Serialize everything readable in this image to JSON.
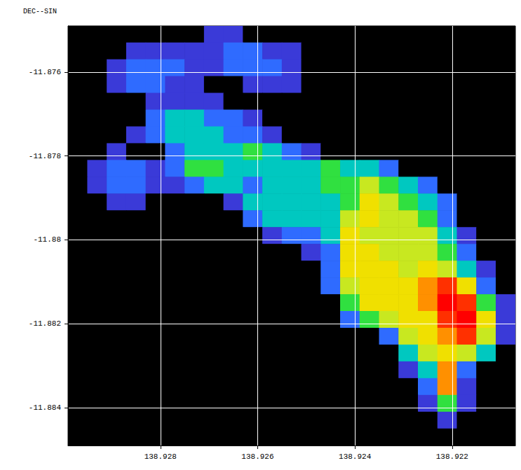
{
  "chart_data": {
    "type": "heatmap",
    "y_label": "DEC--SIN",
    "xlim": [
      138.9299,
      138.9207
    ],
    "xticks": [
      138.928,
      138.926,
      138.924,
      138.922
    ],
    "ylim": [
      -11.8849,
      -11.8749
    ],
    "yticks": [
      -11.884,
      -11.882,
      -11.88,
      -11.878,
      -11.876
    ],
    "grid": true,
    "color_range": [
      0,
      9
    ],
    "x": [
      138.9297,
      138.9293,
      138.9289,
      138.9285,
      138.9281,
      138.9277,
      138.9273,
      138.9269,
      138.9265,
      138.9261,
      138.9257,
      138.9253,
      138.9249,
      138.9245,
      138.9241,
      138.9237,
      138.9233,
      138.9229,
      138.9225,
      138.9221,
      138.9217,
      138.9213,
      138.9209
    ],
    "y": [
      -11.8751,
      -11.8755,
      -11.8759,
      -11.8763,
      -11.8767,
      -11.8771,
      -11.8775,
      -11.8779,
      -11.8783,
      -11.8787,
      -11.8791,
      -11.8795,
      -11.8799,
      -11.8803,
      -11.8807,
      -11.8811,
      -11.8815,
      -11.8819,
      -11.8823,
      -11.8827,
      -11.8831,
      -11.8835,
      -11.8839,
      -11.8843,
      -11.8847
    ],
    "cells": [
      [
        0,
        0,
        0,
        0,
        0,
        0,
        0,
        1,
        1,
        0,
        0,
        0,
        0,
        0,
        0,
        0,
        0,
        0,
        0,
        0,
        0,
        0,
        0
      ],
      [
        0,
        0,
        0,
        1,
        1,
        1,
        1,
        1,
        2,
        2,
        1,
        1,
        0,
        0,
        0,
        0,
        0,
        0,
        0,
        0,
        0,
        0,
        0
      ],
      [
        0,
        0,
        1,
        2,
        2,
        2,
        1,
        1,
        2,
        2,
        2,
        1,
        0,
        0,
        0,
        0,
        0,
        0,
        0,
        0,
        0,
        0,
        0
      ],
      [
        0,
        0,
        1,
        2,
        2,
        1,
        1,
        0,
        0,
        1,
        1,
        1,
        0,
        0,
        0,
        0,
        0,
        0,
        0,
        0,
        0,
        0,
        0
      ],
      [
        0,
        0,
        0,
        0,
        1,
        1,
        1,
        1,
        0,
        0,
        0,
        0,
        0,
        0,
        0,
        0,
        0,
        0,
        0,
        0,
        0,
        0,
        0
      ],
      [
        0,
        0,
        0,
        0,
        2,
        3,
        3,
        2,
        2,
        1,
        0,
        0,
        0,
        0,
        0,
        0,
        0,
        0,
        0,
        0,
        0,
        0,
        0
      ],
      [
        0,
        0,
        0,
        1,
        2,
        3,
        3,
        3,
        2,
        2,
        1,
        0,
        0,
        0,
        0,
        0,
        0,
        0,
        0,
        0,
        0,
        0,
        0
      ],
      [
        0,
        0,
        1,
        0,
        0,
        2,
        3,
        3,
        3,
        4,
        3,
        2,
        1,
        0,
        0,
        0,
        0,
        0,
        0,
        0,
        0,
        0,
        0
      ],
      [
        0,
        1,
        2,
        2,
        1,
        2,
        4,
        4,
        3,
        3,
        3,
        3,
        3,
        4,
        3,
        3,
        2,
        0,
        0,
        0,
        0,
        0,
        0
      ],
      [
        0,
        1,
        2,
        2,
        1,
        1,
        2,
        3,
        3,
        2,
        3,
        3,
        3,
        4,
        4,
        5,
        4,
        3,
        2,
        0,
        0,
        0,
        0
      ],
      [
        0,
        0,
        1,
        1,
        0,
        0,
        0,
        0,
        1,
        3,
        3,
        3,
        3,
        3,
        4,
        6,
        5,
        4,
        3,
        2,
        0,
        0,
        0
      ],
      [
        0,
        0,
        0,
        0,
        0,
        0,
        0,
        0,
        0,
        2,
        3,
        3,
        3,
        3,
        5,
        6,
        5,
        5,
        4,
        2,
        0,
        0,
        0
      ],
      [
        0,
        0,
        0,
        0,
        0,
        0,
        0,
        0,
        0,
        0,
        1,
        2,
        2,
        3,
        6,
        5,
        5,
        5,
        5,
        3,
        1,
        0,
        0
      ],
      [
        0,
        0,
        0,
        0,
        0,
        0,
        0,
        0,
        0,
        0,
        0,
        0,
        1,
        2,
        6,
        6,
        5,
        5,
        5,
        4,
        2,
        0,
        0
      ],
      [
        0,
        0,
        0,
        0,
        0,
        0,
        0,
        0,
        0,
        0,
        0,
        0,
        0,
        2,
        6,
        6,
        6,
        5,
        6,
        5,
        3,
        1,
        0
      ],
      [
        0,
        0,
        0,
        0,
        0,
        0,
        0,
        0,
        0,
        0,
        0,
        0,
        0,
        2,
        5,
        6,
        6,
        6,
        7,
        8,
        6,
        2,
        0
      ],
      [
        0,
        0,
        0,
        0,
        0,
        0,
        0,
        0,
        0,
        0,
        0,
        0,
        0,
        0,
        4,
        6,
        6,
        6,
        7,
        9,
        8,
        4,
        1
      ],
      [
        0,
        0,
        0,
        0,
        0,
        0,
        0,
        0,
        0,
        0,
        0,
        0,
        0,
        0,
        2,
        4,
        5,
        6,
        6,
        8,
        9,
        6,
        1
      ],
      [
        0,
        0,
        0,
        0,
        0,
        0,
        0,
        0,
        0,
        0,
        0,
        0,
        0,
        0,
        0,
        0,
        2,
        5,
        6,
        7,
        8,
        5,
        1
      ],
      [
        0,
        0,
        0,
        0,
        0,
        0,
        0,
        0,
        0,
        0,
        0,
        0,
        0,
        0,
        0,
        0,
        0,
        3,
        5,
        6,
        5,
        3,
        0
      ],
      [
        0,
        0,
        0,
        0,
        0,
        0,
        0,
        0,
        0,
        0,
        0,
        0,
        0,
        0,
        0,
        0,
        0,
        1,
        3,
        7,
        2,
        0,
        0
      ],
      [
        0,
        0,
        0,
        0,
        0,
        0,
        0,
        0,
        0,
        0,
        0,
        0,
        0,
        0,
        0,
        0,
        0,
        0,
        2,
        7,
        1,
        0,
        0
      ],
      [
        0,
        0,
        0,
        0,
        0,
        0,
        0,
        0,
        0,
        0,
        0,
        0,
        0,
        0,
        0,
        0,
        0,
        0,
        1,
        4,
        1,
        0,
        0
      ],
      [
        0,
        0,
        0,
        0,
        0,
        0,
        0,
        0,
        0,
        0,
        0,
        0,
        0,
        0,
        0,
        0,
        0,
        0,
        0,
        1,
        0,
        0,
        0
      ],
      [
        0,
        0,
        0,
        0,
        0,
        0,
        0,
        0,
        0,
        0,
        0,
        0,
        0,
        0,
        0,
        0,
        0,
        0,
        0,
        0,
        0,
        0,
        0
      ]
    ]
  }
}
